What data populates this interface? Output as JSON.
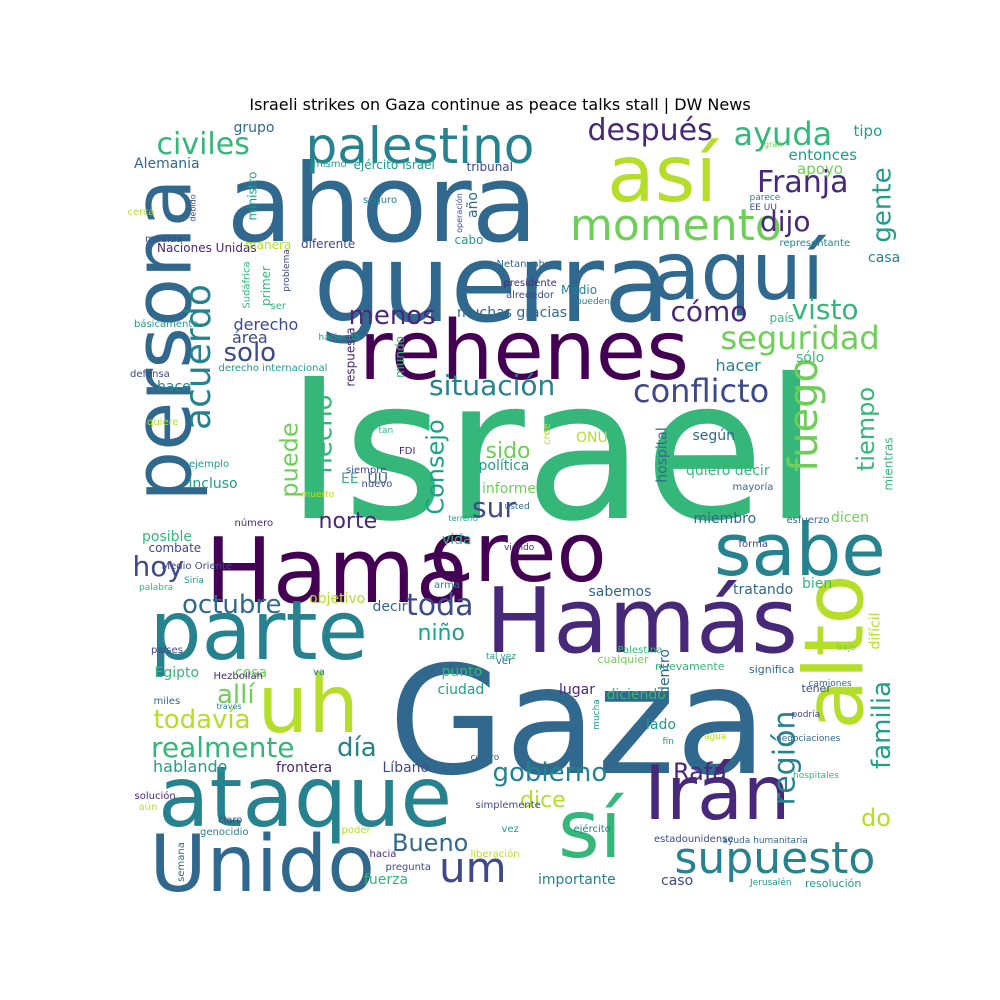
{
  "title": "Israeli strikes on Gaza continue as peace talks stall | DW News",
  "palette": [
    "#440154",
    "#482878",
    "#3e4989",
    "#31688e",
    "#26828e",
    "#1f9e89",
    "#35b779",
    "#6ece58",
    "#b5de2b",
    "#fde725"
  ],
  "words": [
    "Israel",
    "Gaza",
    "ahora",
    "guerra",
    "Hama",
    "Hamás",
    "creo",
    "persona",
    "así",
    "rehenes",
    "parte",
    "alto",
    "sabe",
    "aquí",
    "uh",
    "ataque",
    "Unido",
    "sí",
    "Irán",
    "palestino",
    "momento",
    "supuesto",
    "civiles",
    "acuerdo",
    "después",
    "ayuda",
    "Franja",
    "conflicto",
    "situación",
    "seguridad",
    "um",
    "fuego",
    "dijo",
    "gente",
    "solo",
    "menos",
    "cómo",
    "visto",
    "octubre",
    "toda",
    "todavía",
    "realmente",
    "allí",
    "día",
    "norte",
    "hoy",
    "sur",
    "región",
    "familia",
    "hecho",
    "Consejo",
    "Bueno",
    "gobierno",
    "Rafa",
    "tiempo",
    "puede",
    "sido",
    "dice",
    "niño",
    "derecho",
    "área",
    "hacer",
    "do",
    "hablando",
    "frontera",
    "Líbano",
    "muchas gracias",
    "entonces",
    "apoyo",
    "tipo",
    "grupo",
    "Alemania",
    "ministro",
    "primer",
    "respuesta",
    "mundo",
    "hace",
    "incluso",
    "política",
    "informe",
    "EE",
    "UU",
    "ONU",
    "hospital",
    "quiero decir",
    "según",
    "mientras",
    "miembro",
    "dicen",
    "posible",
    "combate",
    "vida",
    "objetivo",
    "decir",
    "sabemos",
    "tratando",
    "bien",
    "difícil",
    "Egipto",
    "cosa",
    "punto",
    "ciudad",
    "lugar",
    "diciendo",
    "lado",
    "dentro",
    "cualquier",
    "nuevamente",
    "significa",
    "tener",
    "fuerza",
    "importante",
    "caso",
    "resolución",
    "semana",
    "pregunta",
    "hacia",
    "estadounidense",
    "ayuda humanitaria",
    "Jerusalén",
    "genocidio",
    "aún",
    "solución",
    "poder",
    "ejército",
    "liberación",
    "claro",
    "vez",
    "simplemente",
    "centro",
    "hospitales",
    "negociaciones",
    "podría",
    "fin",
    "agua",
    "camiones",
    "bajo",
    "Naciones Unidas",
    "manera",
    "diferente",
    "cabo",
    "representante",
    "casa",
    "país",
    "sólo",
    "año",
    "tribunal",
    "ejército Israel",
    "mismo",
    "seguro",
    "operación",
    "debido",
    "cerca",
    "medida",
    "alrededor",
    "presidente",
    "Netanyahu",
    "Medio",
    "pueden",
    "gran",
    "parece",
    "EE UU",
    "Sudáfrica",
    "problema",
    "ser",
    "haciendo",
    "básicamente",
    "derecho internacional",
    "defensa",
    "tan",
    "quiere",
    "ejemplo",
    "FDI",
    "cree",
    "siempre",
    "nuevo",
    "muerto",
    "usted",
    "mayoría",
    "número",
    "terreno",
    "esfuerzo",
    "viendo",
    "forma",
    "Medio Oriente",
    "Siria",
    "palabra",
    "arma",
    "países",
    "Hezbollah",
    "va",
    "ver",
    "Palestina",
    "tal vez",
    "miles",
    "través",
    "mucha"
  ]
}
